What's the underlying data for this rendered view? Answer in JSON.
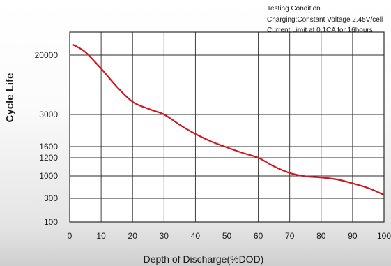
{
  "chart_data": {
    "type": "line",
    "title": "",
    "notes": [
      "Testing Condition",
      "Charging:Constant Voltage 2.45V/cell",
      "Current Limit at 0.1CA for 16hours"
    ],
    "xlabel": "Depth of Discharge(%DOD)",
    "ylabel": "Cycle Life",
    "xlim": [
      0,
      100
    ],
    "x_ticks": [
      "0",
      "10",
      "20",
      "30",
      "40",
      "50",
      "60",
      "70",
      "80",
      "90",
      "100"
    ],
    "y_ticks": [
      "20000",
      "3000",
      "1600",
      "1200",
      "1000",
      "300",
      "100"
    ],
    "y_scale": "non-uniform",
    "grid": true,
    "series": [
      {
        "color": "#d0161e",
        "x": [
          1,
          5,
          10,
          15,
          20,
          25,
          30,
          35,
          40,
          45,
          50,
          55,
          60,
          65,
          70,
          75,
          80,
          85,
          90,
          95,
          100
        ],
        "y": [
          28000,
          22000,
          13000,
          7300,
          4500,
          3600,
          3000,
          2450,
          2050,
          1770,
          1570,
          1360,
          1200,
          1100,
          1030,
          980,
          920,
          830,
          670,
          520,
          360
        ]
      }
    ]
  }
}
